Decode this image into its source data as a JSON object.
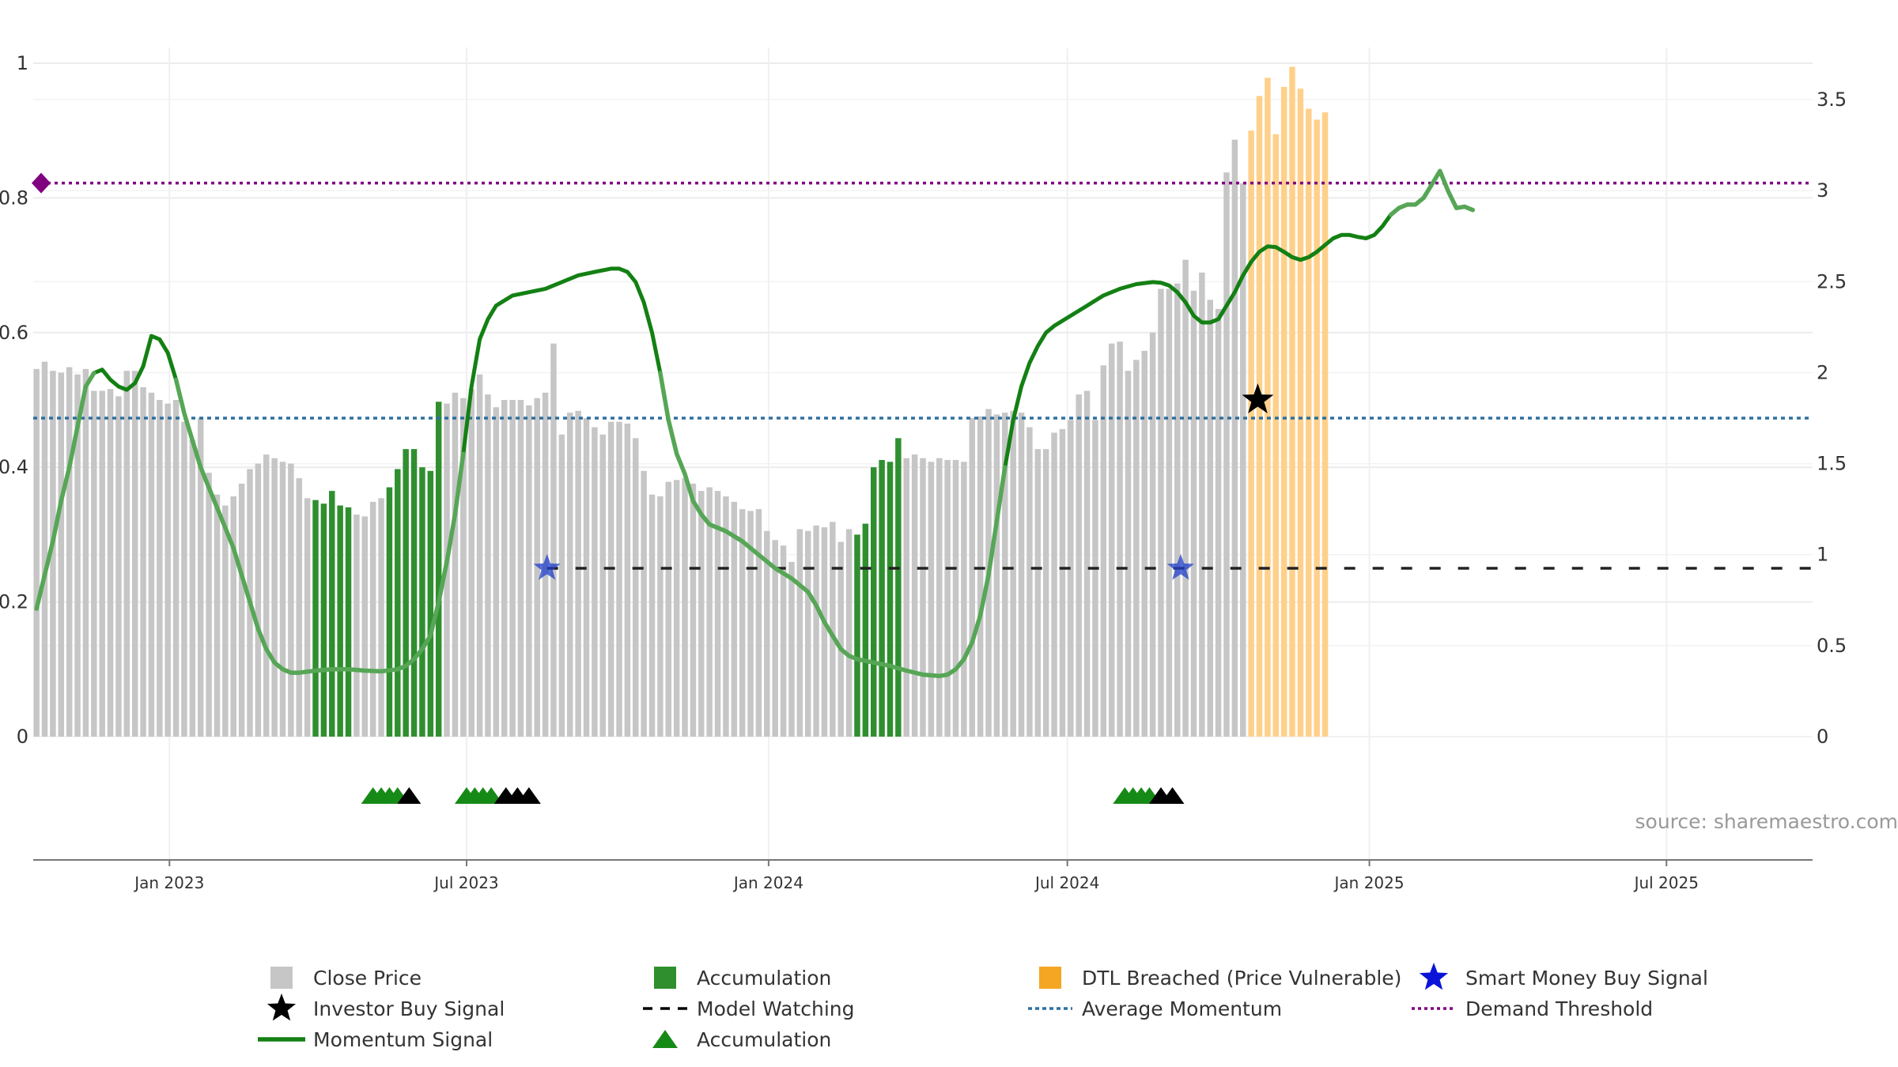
{
  "chart_data": {
    "type": "bar",
    "title": "",
    "xlabel": "",
    "ylabel": "",
    "left_axis": {
      "range": [
        0,
        1
      ],
      "ticks": [
        "0",
        "0.2",
        "0.4",
        "0.6",
        "0.8",
        "1"
      ]
    },
    "right_axis": {
      "range": [
        0,
        3.7
      ],
      "ticks": [
        "0",
        "0.5",
        "1",
        "1.5",
        "2",
        "2.5",
        "3",
        "3.5"
      ]
    },
    "x_ticks": [
      "Jan 2023",
      "Jul 2023",
      "Jan 2024",
      "Jul 2024",
      "Jan 2025",
      "Jul 2025"
    ],
    "x_tick_dates": [
      "2023-01-01",
      "2023-07-01",
      "2024-01-01",
      "2024-07-01",
      "2025-01-01",
      "2025-07-01"
    ],
    "x_range": [
      "2022-10-10",
      "2025-09-28"
    ],
    "grid": true,
    "legend_placement": "bottom",
    "source_text": "source: sharemaestro.com",
    "average_momentum": 0.473,
    "demand_threshold": 0.822,
    "model_watching_level": 0.25,
    "colors": {
      "close": "#c6c6c6",
      "accumulation": "#2f8f2f",
      "breached": "#ffd08a",
      "momentum": "#138013",
      "average": "#2e6f9e",
      "threshold": "#800080",
      "watching": "#222222",
      "smart_star": "#1f3fc9",
      "investor_star": "#000000",
      "triangle_green": "#168a16",
      "triangle_black": "#000000"
    },
    "bar_start_date": "2022-10-12",
    "bar_step_days": 5,
    "close_price": [
      2.02,
      2.06,
      2.01,
      2.0,
      2.03,
      1.99,
      2.02,
      1.9,
      1.9,
      1.91,
      1.87,
      2.01,
      2.01,
      1.92,
      1.89,
      1.85,
      1.83,
      1.85,
      1.73,
      1.63,
      1.75,
      1.45,
      1.33,
      1.27,
      1.32,
      1.39,
      1.47,
      1.5,
      1.55,
      1.53,
      1.51,
      1.5,
      1.42,
      1.31,
      1.3,
      1.28,
      1.35,
      1.27,
      1.26,
      1.22,
      1.21,
      1.29,
      1.31,
      1.37,
      1.47,
      1.58,
      1.58,
      1.48,
      1.46,
      1.84,
      1.83,
      1.89,
      1.86,
      1.91,
      1.99,
      1.88,
      1.81,
      1.85,
      1.85,
      1.85,
      1.82,
      1.86,
      1.89,
      2.16,
      1.66,
      1.78,
      1.79,
      1.75,
      1.7,
      1.66,
      1.73,
      1.73,
      1.72,
      1.64,
      1.46,
      1.33,
      1.32,
      1.4,
      1.41,
      1.42,
      1.39,
      1.35,
      1.37,
      1.35,
      1.32,
      1.29,
      1.25,
      1.24,
      1.25,
      1.13,
      1.08,
      1.05,
      0.96,
      1.14,
      1.13,
      1.16,
      1.15,
      1.18,
      1.07,
      1.14,
      1.11,
      1.17,
      1.48,
      1.52,
      1.51,
      1.64,
      1.53,
      1.55,
      1.53,
      1.51,
      1.53,
      1.52,
      1.52,
      1.51,
      1.75,
      1.76,
      1.8,
      1.77,
      1.78,
      1.79,
      1.78,
      1.7,
      1.58,
      1.58,
      1.67,
      1.69,
      1.74,
      1.88,
      1.9,
      1.74,
      2.04,
      2.16,
      2.17,
      2.01,
      2.07,
      2.12,
      2.22,
      2.46,
      2.46,
      2.49,
      2.62,
      2.45,
      2.55,
      2.4,
      2.35,
      3.1,
      3.28,
      3.04,
      3.33,
      3.52,
      3.62,
      3.31,
      3.57,
      3.68,
      3.56,
      3.45,
      3.39,
      3.43
    ],
    "accumulation_bars": [
      [
        34,
        38
      ],
      [
        43,
        49
      ],
      [
        100,
        105
      ]
    ],
    "breached_bars": [
      [
        148,
        158
      ]
    ],
    "momentum": [
      [
        0,
        0.19
      ],
      [
        1,
        0.24
      ],
      [
        2,
        0.29
      ],
      [
        3,
        0.35
      ],
      [
        4,
        0.4
      ],
      [
        5,
        0.46
      ],
      [
        6,
        0.52
      ],
      [
        7,
        0.54
      ],
      [
        8,
        0.545
      ],
      [
        9,
        0.53
      ],
      [
        10,
        0.52
      ],
      [
        11,
        0.515
      ],
      [
        12,
        0.525
      ],
      [
        13,
        0.55
      ],
      [
        14,
        0.595
      ],
      [
        15,
        0.59
      ],
      [
        16,
        0.57
      ],
      [
        17,
        0.53
      ],
      [
        18,
        0.48
      ],
      [
        19,
        0.44
      ],
      [
        20,
        0.4
      ],
      [
        21,
        0.37
      ],
      [
        22,
        0.34
      ],
      [
        23,
        0.31
      ],
      [
        24,
        0.28
      ],
      [
        25,
        0.24
      ],
      [
        26,
        0.2
      ],
      [
        27,
        0.16
      ],
      [
        28,
        0.13
      ],
      [
        29,
        0.11
      ],
      [
        30,
        0.1
      ],
      [
        31,
        0.095
      ],
      [
        32,
        0.095
      ],
      [
        34,
        0.098
      ],
      [
        36,
        0.1
      ],
      [
        38,
        0.1
      ],
      [
        40,
        0.098
      ],
      [
        42,
        0.097
      ],
      [
        44,
        0.1
      ],
      [
        45,
        0.105
      ],
      [
        46,
        0.115
      ],
      [
        47,
        0.13
      ],
      [
        48,
        0.15
      ],
      [
        49,
        0.2
      ],
      [
        50,
        0.26
      ],
      [
        51,
        0.33
      ],
      [
        52,
        0.42
      ],
      [
        53,
        0.52
      ],
      [
        54,
        0.59
      ],
      [
        55,
        0.62
      ],
      [
        56,
        0.64
      ],
      [
        58,
        0.655
      ],
      [
        60,
        0.66
      ],
      [
        62,
        0.665
      ],
      [
        64,
        0.675
      ],
      [
        66,
        0.685
      ],
      [
        68,
        0.69
      ],
      [
        70,
        0.695
      ],
      [
        71,
        0.695
      ],
      [
        72,
        0.69
      ],
      [
        73,
        0.675
      ],
      [
        74,
        0.645
      ],
      [
        75,
        0.6
      ],
      [
        76,
        0.54
      ],
      [
        77,
        0.47
      ],
      [
        78,
        0.42
      ],
      [
        79,
        0.39
      ],
      [
        80,
        0.35
      ],
      [
        81,
        0.33
      ],
      [
        82,
        0.315
      ],
      [
        84,
        0.305
      ],
      [
        86,
        0.29
      ],
      [
        88,
        0.27
      ],
      [
        90,
        0.25
      ],
      [
        92,
        0.235
      ],
      [
        94,
        0.215
      ],
      [
        95,
        0.195
      ],
      [
        96,
        0.17
      ],
      [
        97,
        0.15
      ],
      [
        98,
        0.13
      ],
      [
        99,
        0.12
      ],
      [
        100,
        0.115
      ],
      [
        102,
        0.11
      ],
      [
        104,
        0.105
      ],
      [
        106,
        0.098
      ],
      [
        108,
        0.092
      ],
      [
        110,
        0.09
      ],
      [
        111,
        0.092
      ],
      [
        112,
        0.1
      ],
      [
        113,
        0.115
      ],
      [
        114,
        0.14
      ],
      [
        115,
        0.18
      ],
      [
        116,
        0.24
      ],
      [
        117,
        0.32
      ],
      [
        118,
        0.4
      ],
      [
        119,
        0.47
      ],
      [
        120,
        0.52
      ],
      [
        121,
        0.555
      ],
      [
        122,
        0.58
      ],
      [
        123,
        0.6
      ],
      [
        124,
        0.61
      ],
      [
        126,
        0.625
      ],
      [
        128,
        0.64
      ],
      [
        130,
        0.655
      ],
      [
        132,
        0.665
      ],
      [
        134,
        0.672
      ],
      [
        136,
        0.675
      ],
      [
        137,
        0.674
      ],
      [
        138,
        0.67
      ],
      [
        139,
        0.66
      ],
      [
        140,
        0.645
      ],
      [
        141,
        0.625
      ],
      [
        142,
        0.615
      ],
      [
        143,
        0.615
      ],
      [
        144,
        0.62
      ],
      [
        145,
        0.64
      ],
      [
        146,
        0.66
      ],
      [
        147,
        0.685
      ],
      [
        148,
        0.705
      ],
      [
        149,
        0.72
      ],
      [
        150,
        0.728
      ],
      [
        151,
        0.727
      ],
      [
        152,
        0.72
      ],
      [
        153,
        0.712
      ],
      [
        154,
        0.708
      ],
      [
        155,
        0.712
      ],
      [
        156,
        0.72
      ],
      [
        157,
        0.73
      ],
      [
        158,
        0.74
      ],
      [
        159,
        0.745
      ],
      [
        160,
        0.745
      ],
      [
        161,
        0.742
      ],
      [
        162,
        0.74
      ],
      [
        163,
        0.745
      ],
      [
        164,
        0.758
      ],
      [
        165,
        0.775
      ],
      [
        166,
        0.785
      ],
      [
        167,
        0.79
      ],
      [
        168,
        0.79
      ],
      [
        169,
        0.8
      ],
      [
        170,
        0.82
      ],
      [
        171,
        0.84
      ],
      [
        172,
        0.81
      ],
      [
        173,
        0.785
      ],
      [
        174,
        0.787
      ],
      [
        175,
        0.782
      ]
    ],
    "momentum_faded_ranges": [
      [
        0,
        7
      ],
      [
        17,
        52
      ],
      [
        76,
        118
      ],
      [
        165,
        175
      ]
    ],
    "model_watching_ranges": [
      [
        "2023-08-19",
        "2025-09-28"
      ]
    ],
    "smart_money_signals": [
      {
        "date": "2023-08-19",
        "value": 0.25
      },
      {
        "date": "2024-09-08",
        "value": 0.25
      }
    ],
    "investor_buy_signals": [
      {
        "date": "2024-10-25",
        "value": 0.5
      }
    ],
    "accumulation_triangles": [
      {
        "date": "2023-05-05",
        "color": "green"
      },
      {
        "date": "2023-05-10",
        "color": "green"
      },
      {
        "date": "2023-05-15",
        "color": "green"
      },
      {
        "date": "2023-05-20",
        "color": "green"
      },
      {
        "date": "2023-05-27",
        "color": "black"
      },
      {
        "date": "2023-07-01",
        "color": "green"
      },
      {
        "date": "2023-07-06",
        "color": "green"
      },
      {
        "date": "2023-07-11",
        "color": "green"
      },
      {
        "date": "2023-07-16",
        "color": "green"
      },
      {
        "date": "2023-07-25",
        "color": "black"
      },
      {
        "date": "2023-08-01",
        "color": "black"
      },
      {
        "date": "2023-08-08",
        "color": "black"
      },
      {
        "date": "2024-08-05",
        "color": "green"
      },
      {
        "date": "2024-08-10",
        "color": "green"
      },
      {
        "date": "2024-08-15",
        "color": "green"
      },
      {
        "date": "2024-08-20",
        "color": "green"
      },
      {
        "date": "2024-08-27",
        "color": "black"
      },
      {
        "date": "2024-09-03",
        "color": "black"
      }
    ],
    "legend": [
      {
        "label": "Close Price",
        "marker": "square-gray"
      },
      {
        "label": "Accumulation",
        "marker": "square-green"
      },
      {
        "label": "DTL Breached (Price Vulnerable)",
        "marker": "square-orange"
      },
      {
        "label": "Smart Money Buy Signal",
        "marker": "star-blue"
      },
      {
        "label": "Investor Buy Signal",
        "marker": "star-black"
      },
      {
        "label": "Model Watching",
        "marker": "dash-black"
      },
      {
        "label": "Average Momentum",
        "marker": "dotted-blue"
      },
      {
        "label": "Demand Threshold",
        "marker": "dotted-purple"
      },
      {
        "label": "Momentum Signal",
        "marker": "line-green"
      },
      {
        "label": "Accumulation",
        "marker": "triangle-green"
      }
    ]
  }
}
